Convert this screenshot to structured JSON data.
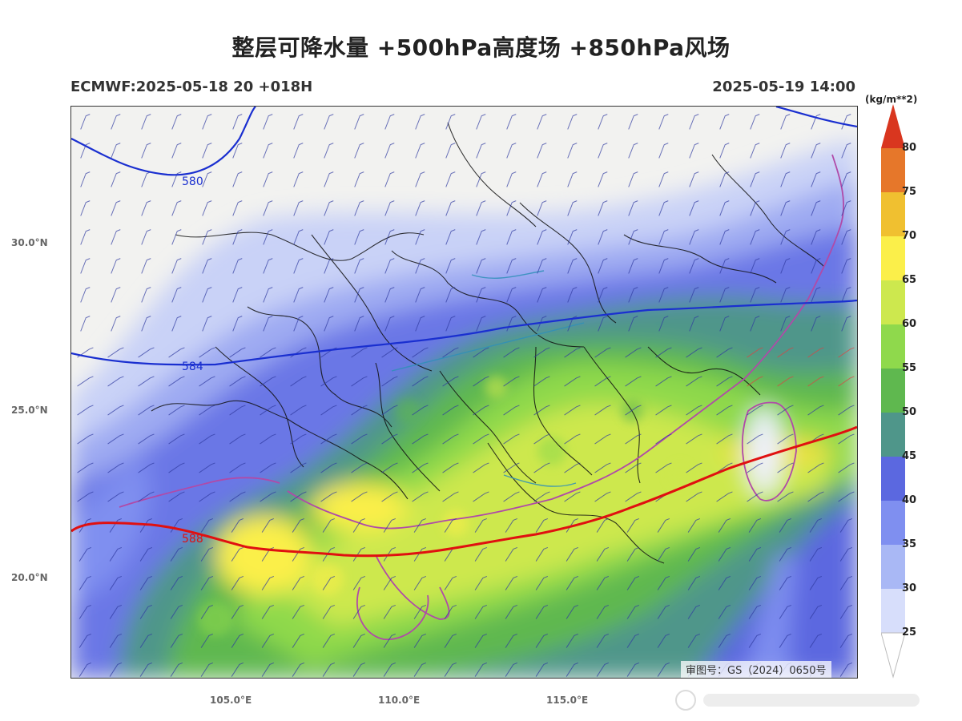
{
  "title": "整层可降水量 +500hPa高度场 +850hPa风场",
  "model_run": "ECMWF:2025-05-18 20 +018H",
  "valid_time": "2025-05-19 14:00",
  "map": {
    "lat_labels": [
      "30.0°N",
      "25.0°N",
      "20.0°N"
    ],
    "lon_labels": [
      "105.0°E",
      "110.0°E",
      "115.0°E"
    ],
    "contours": [
      {
        "value": "580",
        "label": "580",
        "color": "#1a2fd0"
      },
      {
        "value": "584",
        "label": "584",
        "color": "#1a2fd0"
      },
      {
        "value": "588",
        "label": "588",
        "color": "#e01010"
      }
    ],
    "approval_number": "审图号：GS（2024）0650号"
  },
  "colorbar": {
    "unit": "(kg/m**2)",
    "levels": [
      {
        "label": "80",
        "color": "#d9361f"
      },
      {
        "label": "75",
        "color": "#e6772a"
      },
      {
        "label": "70",
        "color": "#f0c030"
      },
      {
        "label": "65",
        "color": "#fbef4a"
      },
      {
        "label": "60",
        "color": "#cde84e"
      },
      {
        "label": "55",
        "color": "#8fd94c"
      },
      {
        "label": "50",
        "color": "#5fb84f"
      },
      {
        "label": "45",
        "color": "#4f968a"
      },
      {
        "label": "40",
        "color": "#5b68e0"
      },
      {
        "label": "35",
        "color": "#7f8ff0"
      },
      {
        "label": "30",
        "color": "#a9b8f5"
      },
      {
        "label": "25",
        "color": "#d7defb"
      }
    ]
  }
}
